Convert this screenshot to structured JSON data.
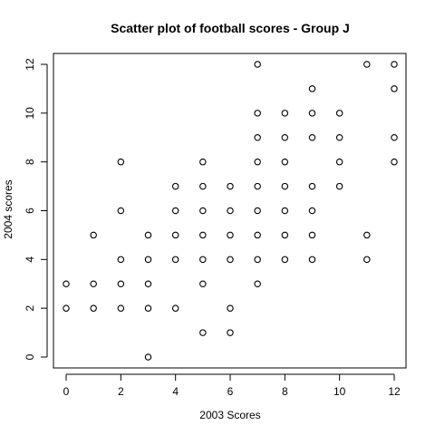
{
  "chart_data": {
    "type": "scatter",
    "title": "Scatter plot of football scores - Group J",
    "xlabel": "2003 Scores",
    "ylabel": "2004 scores",
    "xlim": [
      0,
      12
    ],
    "ylim": [
      0,
      12
    ],
    "xticks": [
      0,
      2,
      4,
      6,
      8,
      10,
      12
    ],
    "yticks": [
      0,
      2,
      4,
      6,
      8,
      10,
      12
    ],
    "grid": false,
    "marker": "open-circle",
    "color": "#000000",
    "points": [
      [
        0,
        2
      ],
      [
        0,
        3
      ],
      [
        1,
        2
      ],
      [
        1,
        3
      ],
      [
        1,
        5
      ],
      [
        2,
        2
      ],
      [
        2,
        3
      ],
      [
        2,
        4
      ],
      [
        2,
        6
      ],
      [
        2,
        8
      ],
      [
        3,
        0
      ],
      [
        3,
        2
      ],
      [
        3,
        3
      ],
      [
        3,
        4
      ],
      [
        3,
        5
      ],
      [
        4,
        2
      ],
      [
        4,
        4
      ],
      [
        4,
        5
      ],
      [
        4,
        6
      ],
      [
        4,
        7
      ],
      [
        5,
        1
      ],
      [
        5,
        3
      ],
      [
        5,
        4
      ],
      [
        5,
        5
      ],
      [
        5,
        6
      ],
      [
        5,
        7
      ],
      [
        5,
        8
      ],
      [
        6,
        1
      ],
      [
        6,
        2
      ],
      [
        6,
        4
      ],
      [
        6,
        5
      ],
      [
        6,
        6
      ],
      [
        6,
        7
      ],
      [
        7,
        3
      ],
      [
        7,
        4
      ],
      [
        7,
        5
      ],
      [
        7,
        6
      ],
      [
        7,
        7
      ],
      [
        7,
        8
      ],
      [
        7,
        9
      ],
      [
        7,
        10
      ],
      [
        7,
        12
      ],
      [
        8,
        4
      ],
      [
        8,
        5
      ],
      [
        8,
        6
      ],
      [
        8,
        7
      ],
      [
        8,
        8
      ],
      [
        8,
        9
      ],
      [
        8,
        10
      ],
      [
        9,
        4
      ],
      [
        9,
        5
      ],
      [
        9,
        6
      ],
      [
        9,
        7
      ],
      [
        9,
        9
      ],
      [
        9,
        10
      ],
      [
        9,
        11
      ],
      [
        10,
        7
      ],
      [
        10,
        8
      ],
      [
        10,
        9
      ],
      [
        10,
        10
      ],
      [
        11,
        4
      ],
      [
        11,
        5
      ],
      [
        11,
        12
      ],
      [
        12,
        8
      ],
      [
        12,
        9
      ],
      [
        12,
        11
      ],
      [
        12,
        12
      ]
    ]
  }
}
